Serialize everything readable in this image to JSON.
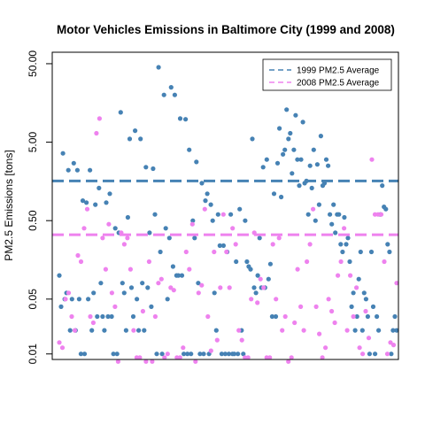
{
  "chart_data": {
    "type": "scatter",
    "title": "Motor Vehicles Emissions in Baltimore City (1999 and 2008)",
    "xlabel": "",
    "ylabel": "PM2.5 Emissions [tons]",
    "y_scale": "log",
    "ylim": [
      0.0085,
      70
    ],
    "yticks": [
      0.01,
      0.05,
      0.5,
      5,
      50
    ],
    "ytick_labels": [
      "0.01",
      "0.05",
      "0.50",
      "5.00",
      "50.00"
    ],
    "x_axis_ticks": false,
    "grid": false,
    "legend_position": "top-right",
    "colors": {
      "series_1999": "#4682b4",
      "series_2008": "#ee82ee",
      "frame": "#000000"
    },
    "series": [
      {
        "name": "1999 PM2.5 Average",
        "color": "#4682b4",
        "average": 1.6,
        "values": [
          0.1,
          0.04,
          3.6,
          0.05,
          0.06,
          2.2,
          0.02,
          0.05,
          2.7,
          0.02,
          2.2,
          0.05,
          0.01,
          0.9,
          0.01,
          0.85,
          0.05,
          2.2,
          0.02,
          0.06,
          0.8,
          0.03,
          1.3,
          0.08,
          0.03,
          0.02,
          0.85,
          0.03,
          1.1,
          0.03,
          0.01,
          0.4,
          0.01,
          0.35,
          12,
          0.08,
          0.06,
          0.02,
          0.55,
          5.5,
          0.07,
          0.03,
          7,
          0.05,
          0.02,
          5.5,
          0.08,
          0.02,
          2.4,
          0.07,
          0.35,
          0.04,
          2.3,
          0.6,
          0.01,
          45,
          0.2,
          0.01,
          20,
          0.4,
          0.05,
          0.3,
          25,
          0.13,
          20,
          0.1,
          0.1,
          10,
          0.1,
          0.01,
          9.8,
          0.01,
          4,
          0.01,
          0.5,
          0.3,
          2.8,
          0.08,
          0.01,
          1.5,
          0.01,
          0.9,
          1.1,
          0.01,
          0.8,
          0.5,
          0.06,
          0.02,
          0.6,
          0.24,
          0.01,
          0.24,
          0.01,
          0.2,
          0.01,
          0.6,
          0.01,
          0.01,
          0.15,
          0.01,
          0.7,
          0.02,
          0.01,
          0.5,
          0.15,
          0.13,
          0.12,
          5.5,
          0.07,
          0.06,
          0.1,
          0.3,
          0.07,
          2.4,
          0.07,
          3,
          0.09,
          0.14,
          0.03,
          1.1,
          0.03,
          2.7,
          7.5,
          1,
          3.5,
          4,
          13,
          5.5,
          6.5,
          2,
          4,
          11,
          3,
          1.4,
          3,
          9,
          1.5,
          1.6,
          0.6,
          2.5,
          1.3,
          4,
          0.5,
          2.6,
          0.8,
          6,
          1.4,
          1.5,
          3,
          2.5,
          0.6,
          0.45,
          0.8,
          0.35,
          0.6,
          0.6,
          0.25,
          0.2,
          0.55,
          0.25,
          0.3,
          0.15,
          0.04,
          0.06,
          0.02,
          0.03,
          0.09,
          0.2,
          0.02,
          0.06,
          0.05,
          0.03,
          0.01,
          0.2,
          0.04,
          0.01,
          0.03,
          0.02,
          0.6,
          1.4,
          0.75,
          0.7,
          0.25,
          0.2,
          0.01,
          0.02,
          0.03,
          0.02
        ]
      },
      {
        "name": "2008 PM2.5 Average",
        "color": "#ee82ee",
        "average": 0.33,
        "values": [
          0.014,
          0.012,
          0.05,
          0.06,
          0.03,
          0.02,
          0.18,
          0.15,
          0.4,
          0.7,
          0.03,
          0.025,
          6.5,
          10,
          0.3,
          0.12,
          0.45,
          0.06,
          0.04,
          0.008,
          0.35,
          0.25,
          0.3,
          0.12,
          0.02,
          0.009,
          0.009,
          0.035,
          0.008,
          0.15,
          0.008,
          0.03,
          0.08,
          0.09,
          0.009,
          0.01,
          0.07,
          0.065,
          0.009,
          0.009,
          0.012,
          0.2,
          0.12,
          0.45,
          0.008,
          0.06,
          0.075,
          0.7,
          0.03,
          0.011,
          0.2,
          0.015,
          0.07,
          0.6,
          0.2,
          0.07,
          0.4,
          0.25,
          0.02,
          0.015,
          0.009,
          0.009,
          0.05,
          0.35,
          0.045,
          0.09,
          0.07,
          0.009,
          0.009,
          0.25,
          0.05,
          0.3,
          0.02,
          0.03,
          0.008,
          0.009,
          0.025,
          0.12,
          0.04,
          0.02,
          0.15,
          0.25,
          0.7,
          0.04,
          0.018,
          0.009,
          0.012,
          0.05,
          0.035,
          0.025,
          0.1,
          0.15,
          0.4,
          0.02,
          0.1,
          0.03,
          0.07,
          0.012,
          0.01,
          0.035,
          0.016,
          3,
          0.6,
          0.6,
          0.6,
          0.15,
          0.01,
          0.014,
          0.013,
          0.08
        ]
      }
    ]
  }
}
